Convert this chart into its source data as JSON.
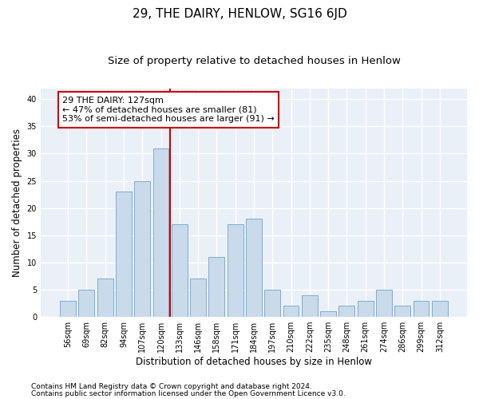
{
  "title": "29, THE DAIRY, HENLOW, SG16 6JD",
  "subtitle": "Size of property relative to detached houses in Henlow",
  "xlabel": "Distribution of detached houses by size in Henlow",
  "ylabel": "Number of detached properties",
  "categories": [
    "56sqm",
    "69sqm",
    "82sqm",
    "94sqm",
    "107sqm",
    "120sqm",
    "133sqm",
    "146sqm",
    "158sqm",
    "171sqm",
    "184sqm",
    "197sqm",
    "210sqm",
    "222sqm",
    "235sqm",
    "248sqm",
    "261sqm",
    "274sqm",
    "286sqm",
    "299sqm",
    "312sqm"
  ],
  "values": [
    3,
    5,
    7,
    23,
    25,
    31,
    17,
    7,
    11,
    17,
    18,
    5,
    2,
    4,
    1,
    2,
    3,
    5,
    2,
    3,
    3
  ],
  "bar_color": "#c9daea",
  "bar_edge_color": "#7bafd4",
  "background_color": "#eaf0f8",
  "grid_color": "#ffffff",
  "vline_x": 5.5,
  "vline_color": "#cc0000",
  "annotation_line1": "29 THE DAIRY: 127sqm",
  "annotation_line2": "← 47% of detached houses are smaller (81)",
  "annotation_line3": "53% of semi-detached houses are larger (91) →",
  "annotation_box_color": "#ffffff",
  "annotation_box_edge_color": "#cc0000",
  "ylim": [
    0,
    42
  ],
  "yticks": [
    0,
    5,
    10,
    15,
    20,
    25,
    30,
    35,
    40
  ],
  "footnote1": "Contains HM Land Registry data © Crown copyright and database right 2024.",
  "footnote2": "Contains public sector information licensed under the Open Government Licence v3.0.",
  "title_fontsize": 11,
  "subtitle_fontsize": 9.5,
  "tick_fontsize": 7,
  "xlabel_fontsize": 8.5,
  "ylabel_fontsize": 8.5,
  "annotation_fontsize": 8,
  "footnote_fontsize": 6.5
}
